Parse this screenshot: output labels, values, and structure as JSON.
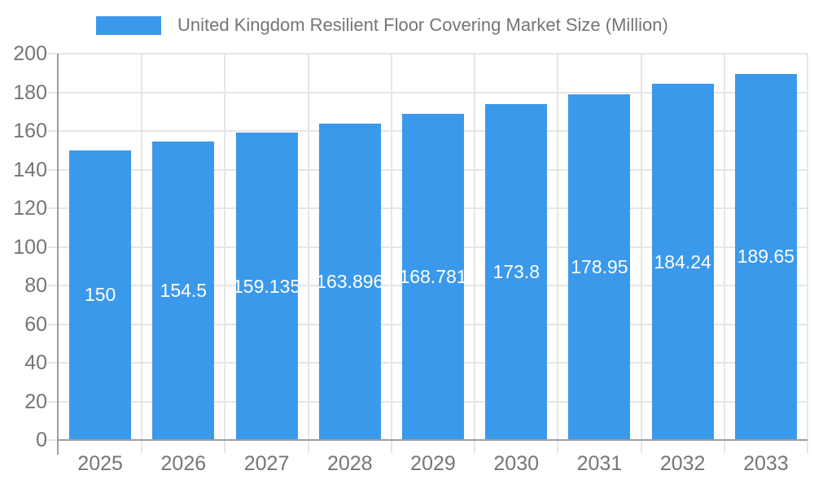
{
  "chart_data": {
    "type": "bar",
    "title": "United Kingdom Resilient Floor Covering Market Size (Million)",
    "categories": [
      "2025",
      "2026",
      "2027",
      "2028",
      "2029",
      "2030",
      "2031",
      "2032",
      "2033"
    ],
    "values": [
      150,
      154.5,
      159.135,
      163.896,
      168.781,
      173.8,
      178.95,
      184.24,
      189.65
    ],
    "bar_labels": [
      "150",
      "154.5",
      "159.135",
      "163.896",
      "168.781",
      "173.8",
      "178.95",
      "184.24",
      "189.65"
    ],
    "xlabel": "",
    "ylabel": "",
    "ylim": [
      0,
      200
    ],
    "yticks": [
      0,
      20,
      40,
      60,
      80,
      100,
      120,
      140,
      160,
      180,
      200
    ],
    "ytick_labels": [
      "0",
      "20",
      "40",
      "60",
      "80",
      "100",
      "120",
      "140",
      "160",
      "180",
      "200"
    ],
    "grid": true,
    "legend_position": "top-left",
    "colors": {
      "bar": "#3B99EC",
      "grid": "#E6E6E6",
      "axis": "#9E9E9E",
      "text": "#757575",
      "bar_label_text": "#FFFFFF"
    }
  }
}
